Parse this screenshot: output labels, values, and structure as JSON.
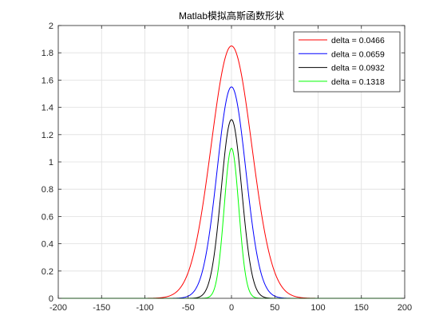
{
  "chart_data": {
    "type": "line",
    "title": "Matlab模拟高斯函数形状",
    "xlabel": "",
    "ylabel": "",
    "xlim": [
      -200,
      200
    ],
    "ylim": [
      0,
      2
    ],
    "x_ticks": [
      -200,
      -150,
      -100,
      -50,
      0,
      50,
      100,
      150,
      200
    ],
    "y_ticks": [
      0,
      0.2,
      0.4,
      0.6,
      0.8,
      1,
      1.2,
      1.4,
      1.6,
      1.8,
      2
    ],
    "x_tick_labels": [
      "-200",
      "-150",
      "-100",
      "-50",
      "0",
      "50",
      "100",
      "150",
      "200"
    ],
    "y_tick_labels": [
      "0",
      "0.2",
      "0.4",
      "0.6",
      "0.8",
      "1",
      "1.2",
      "1.4",
      "1.6",
      "1.8",
      "2"
    ],
    "grid": true,
    "legend_position": "top-right",
    "series": [
      {
        "name": "delta = 0.0466",
        "color": "#ff0000",
        "peak": 1.85,
        "x_extent": 75
      },
      {
        "name": "delta = 0.0659",
        "color": "#0000ff",
        "peak": 1.55,
        "x_extent": 53
      },
      {
        "name": "delta = 0.0932",
        "color": "#000000",
        "peak": 1.31,
        "x_extent": 38
      },
      {
        "name": "delta = 0.1318",
        "color": "#00ff00",
        "peak": 1.1,
        "x_extent": 27
      }
    ]
  }
}
